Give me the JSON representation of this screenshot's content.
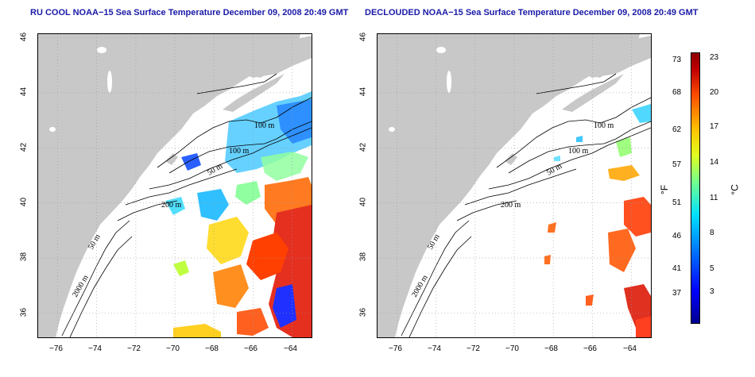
{
  "left_panel": {
    "title": "RU COOL NOAA−15 Sea Surface Temperature December 09, 2008 20:49 GMT",
    "contours": [
      "100 m",
      "100 m",
      "50 m",
      "200 m",
      "50 m",
      "2000 m"
    ]
  },
  "right_panel": {
    "title": "DECLOUDED NOAA−15 Sea Surface Temperature December 09, 2008 20:49 GMT",
    "contours": [
      "100 m",
      "100 m",
      "50 m",
      "200 m",
      "50 m",
      "2000 m"
    ]
  },
  "axes": {
    "x_ticks": [
      "−76",
      "−74",
      "−72",
      "−70",
      "−68",
      "−66",
      "−64"
    ],
    "y_ticks": [
      "46",
      "44",
      "42",
      "40",
      "38",
      "36"
    ],
    "x_range": [
      -77.0,
      -63.0
    ],
    "y_range": [
      35.0,
      46.0
    ],
    "grid": "dotted"
  },
  "colorbar": {
    "fahrenheit_ticks": [
      "73",
      "68",
      "62",
      "57",
      "51",
      "46",
      "41",
      "37"
    ],
    "celsius_ticks": [
      "23",
      "20",
      "17",
      "14",
      "11",
      "8",
      "5",
      "3"
    ],
    "unit_f": "°F",
    "unit_c": "°C",
    "colors": [
      "#000090",
      "#0000ff",
      "#0080ff",
      "#00e0ff",
      "#70ff90",
      "#e0ff20",
      "#ffc000",
      "#ff5000",
      "#c00000",
      "#900000"
    ]
  }
}
